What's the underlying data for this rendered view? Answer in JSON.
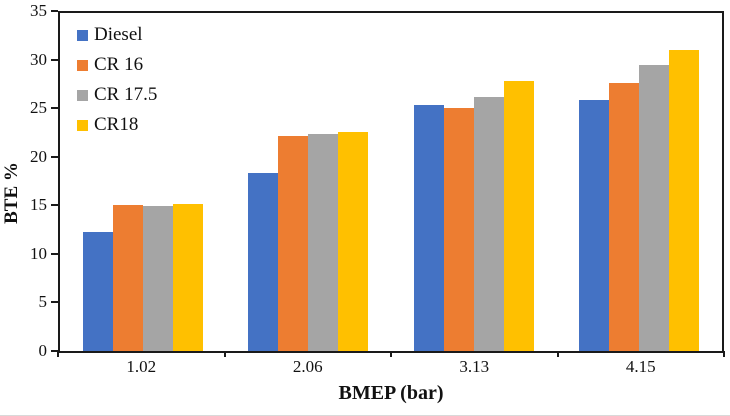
{
  "chart_data": {
    "type": "bar",
    "title": "",
    "xlabel": "BMEP (bar)",
    "ylabel": "BTE %",
    "categories": [
      "1.02",
      "2.06",
      "3.13",
      "4.15"
    ],
    "series": [
      {
        "name": "Diesel",
        "color": "#4472C4",
        "values": [
          12.3,
          18.3,
          25.3,
          25.8
        ]
      },
      {
        "name": "CR 16",
        "color": "#ED7D31",
        "values": [
          15.0,
          22.1,
          25.0,
          27.6
        ]
      },
      {
        "name": "CR 17.5",
        "color": "#A5A5A5",
        "values": [
          14.9,
          22.3,
          26.2,
          29.4
        ]
      },
      {
        "name": "CR18",
        "color": "#FFC000",
        "values": [
          15.1,
          22.6,
          27.8,
          31.0
        ]
      }
    ],
    "ylim": [
      0,
      35
    ],
    "yticks": [
      0,
      5,
      10,
      15,
      20,
      25,
      30,
      35
    ],
    "grid": false,
    "legend_position": "top-left-inside",
    "axis_color": "#1a1a1a"
  }
}
